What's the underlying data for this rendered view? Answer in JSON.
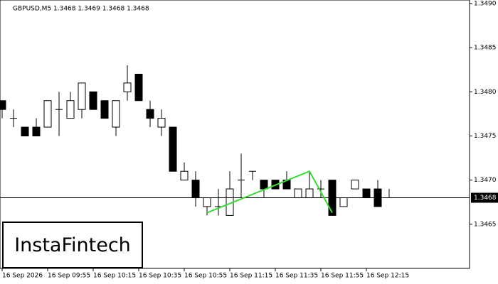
{
  "chart_data": {
    "type": "candlestick",
    "title": "GBPUSD,M5  1.3468 1.3469 1.3468 1.3468",
    "categories": [
      "16 Sep 2026",
      null,
      null,
      null,
      "16 Sep 09:55",
      null,
      null,
      null,
      "16 Sep 10:15",
      null,
      null,
      null,
      "16 Sep 10:35",
      null,
      null,
      null,
      "16 Sep 10:55",
      null,
      null,
      null,
      "16 Sep 11:15",
      null,
      null,
      null,
      "16 Sep 11:35",
      null,
      null,
      null,
      "16 Sep 11:55",
      null,
      null,
      null,
      "16 Sep 12:15",
      null,
      null
    ],
    "open": [
      1.3479,
      1.3477,
      1.3476,
      1.3476,
      1.3476,
      1.3478,
      1.3477,
      1.3478,
      1.348,
      1.3479,
      1.3476,
      1.348,
      1.3482,
      1.3478,
      1.3476,
      1.3476,
      1.347,
      1.347,
      1.3467,
      1.3467,
      1.3466,
      1.347,
      1.3471,
      1.347,
      1.347,
      1.347,
      1.3468,
      1.3468,
      1.3469,
      1.347,
      1.3467,
      1.3469,
      1.3469,
      1.3469,
      1.3468
    ],
    "high": [
      1.3479,
      1.3478,
      1.3476,
      1.3477,
      1.3479,
      1.348,
      1.348,
      1.3481,
      1.348,
      1.3479,
      1.3479,
      1.3483,
      1.3482,
      1.3479,
      1.3478,
      1.3476,
      1.3472,
      1.3471,
      1.3468,
      1.3469,
      1.3471,
      1.3473,
      1.3471,
      1.347,
      1.347,
      1.3471,
      1.3469,
      1.3471,
      1.347,
      1.347,
      1.3468,
      1.347,
      1.3469,
      1.347,
      1.3469
    ],
    "low": [
      1.3477,
      1.3476,
      1.3475,
      1.3475,
      1.3476,
      1.3475,
      1.3477,
      1.3477,
      1.3478,
      1.3477,
      1.3475,
      1.3479,
      1.3479,
      1.3476,
      1.3475,
      1.3471,
      1.347,
      1.3467,
      1.3466,
      1.3466,
      1.3466,
      1.3468,
      1.347,
      1.3468,
      1.3469,
      1.3469,
      1.3468,
      1.3468,
      1.3468,
      1.3466,
      1.3467,
      1.3469,
      1.3468,
      1.3467,
      1.3468
    ],
    "close": [
      1.3478,
      1.3477,
      1.3475,
      1.3475,
      1.3479,
      1.3478,
      1.3479,
      1.3481,
      1.3478,
      1.3477,
      1.3479,
      1.3481,
      1.3479,
      1.3477,
      1.3477,
      1.3471,
      1.3471,
      1.3468,
      1.3468,
      1.3467,
      1.3469,
      1.347,
      1.3471,
      1.3469,
      1.3469,
      1.3469,
      1.3469,
      1.3469,
      1.3469,
      1.3466,
      1.3468,
      1.347,
      1.3468,
      1.3467,
      1.3468
    ],
    "ylim": [
      1.346,
      1.34904
    ],
    "yticks": [
      1.3465,
      {
        "value": 1.347,
        "label": "1.3470"
      },
      1.3475,
      {
        "value": 1.348,
        "label": "1.3480"
      },
      1.3485,
      {
        "value": 1.349,
        "label": "1.3490"
      }
    ],
    "current_price": 1.3468,
    "pattern": {
      "color": "#33dd33",
      "x": [
        18,
        27,
        29
      ],
      "values": [
        1.34663,
        1.3471,
        1.34663
      ]
    }
  },
  "logo": "InstaFintech"
}
